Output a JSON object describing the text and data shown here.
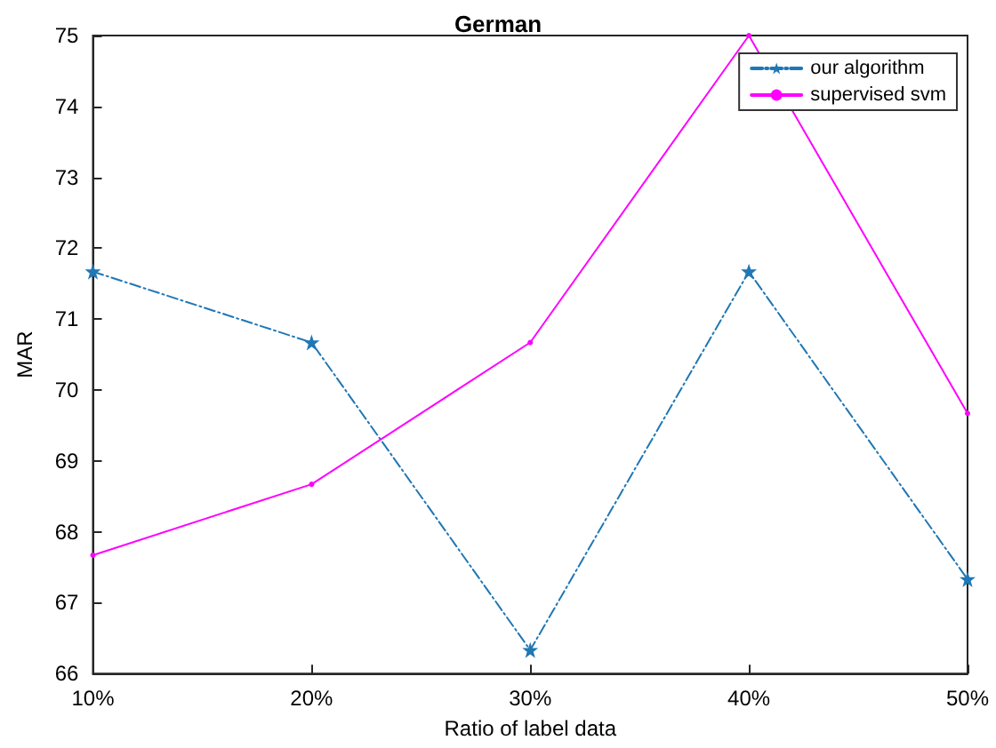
{
  "chart_data": {
    "type": "line",
    "title": "German",
    "xlabel": "Ratio of label data",
    "ylabel": "MAR",
    "categories": [
      "10%",
      "20%",
      "30%",
      "40%",
      "50%"
    ],
    "series": [
      {
        "name": "our algorithm",
        "color": "#1f77b4",
        "values": [
          71.67,
          70.67,
          66.33,
          71.67,
          67.33
        ],
        "marker": "star",
        "line_style": "dashed"
      },
      {
        "name": "supervised svm",
        "color": "#ff00ff",
        "values": [
          67.67,
          68.67,
          70.67,
          75,
          69.67
        ],
        "marker": "circle",
        "line_style": "solid"
      }
    ],
    "ylim": [
      66,
      75
    ],
    "yticks": [
      66,
      67,
      68,
      69,
      70,
      71,
      72,
      73,
      74,
      75
    ],
    "grid": false,
    "legend": "top right"
  }
}
